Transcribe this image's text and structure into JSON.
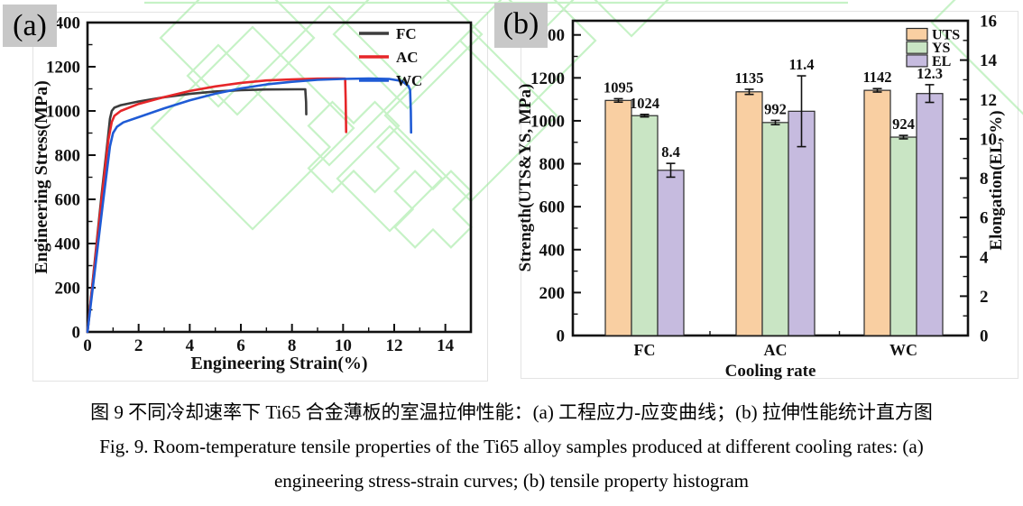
{
  "panels": {
    "a": {
      "label": "(a)"
    },
    "b": {
      "label": "(b)"
    }
  },
  "caption": {
    "zh": "图 9 不同冷却速率下 Ti65 合金薄板的室温拉伸性能：(a) 工程应力-应变曲线；(b) 拉伸性能统计直方图",
    "en1": "Fig. 9. Room-temperature tensile properties of the Ti65 alloy samples produced at different cooling rates: (a)",
    "en2": "engineering stress-strain curves; (b) tensile property histogram"
  },
  "colors": {
    "fc_line": "#3d3d3d",
    "ac_line": "#e62629",
    "wc_line": "#1f5bd5",
    "uts_fill": "#f9cfa2",
    "ys_fill": "#c9e5c4",
    "el_fill": "#c6bbdf",
    "axis": "#111111",
    "watermark_green": "#97e897",
    "corner_gray": "#c8c8c8"
  },
  "chart_data": [
    {
      "type": "line",
      "title": "",
      "xlabel": "Engineering Strain(%)",
      "ylabel": "Engineering Stress(MPa)",
      "xlim": [
        0,
        15
      ],
      "ylim": [
        0,
        1400
      ],
      "x_ticks": [
        0,
        2,
        4,
        6,
        8,
        10,
        12,
        14
      ],
      "y_ticks": [
        0,
        200,
        400,
        600,
        800,
        1000,
        1200,
        1400
      ],
      "grid": false,
      "legend_position": "top-right",
      "series": [
        {
          "name": "FC",
          "color": "#3d3d3d",
          "points": [
            [
              0,
              0
            ],
            [
              0.55,
              620
            ],
            [
              0.8,
              880
            ],
            [
              0.88,
              965
            ],
            [
              0.95,
              1000
            ],
            [
              1.05,
              1015
            ],
            [
              1.3,
              1026
            ],
            [
              2,
              1043
            ],
            [
              3,
              1062
            ],
            [
              4,
              1077
            ],
            [
              5,
              1088
            ],
            [
              6,
              1094
            ],
            [
              7,
              1097
            ],
            [
              8.2,
              1098
            ],
            [
              8.52,
              1098
            ],
            [
              8.55,
              1040
            ],
            [
              8.56,
              985
            ]
          ]
        },
        {
          "name": "AC",
          "color": "#e62629",
          "points": [
            [
              0,
              0
            ],
            [
              0.55,
              600
            ],
            [
              0.82,
              870
            ],
            [
              0.95,
              950
            ],
            [
              1.05,
              978
            ],
            [
              1.3,
              1000
            ],
            [
              2,
              1032
            ],
            [
              3,
              1063
            ],
            [
              4,
              1090
            ],
            [
              5,
              1111
            ],
            [
              6,
              1127
            ],
            [
              7,
              1138
            ],
            [
              8,
              1143
            ],
            [
              9,
              1146
            ],
            [
              9.8,
              1147
            ],
            [
              10.08,
              1146
            ],
            [
              10.1,
              1050
            ],
            [
              10.12,
              905
            ]
          ]
        },
        {
          "name": "WC",
          "color": "#1f5bd5",
          "points": [
            [
              0,
              0
            ],
            [
              0.6,
              580
            ],
            [
              0.88,
              840
            ],
            [
              1.0,
              900
            ],
            [
              1.15,
              928
            ],
            [
              1.4,
              948
            ],
            [
              2,
              972
            ],
            [
              3,
              1012
            ],
            [
              4,
              1048
            ],
            [
              5,
              1078
            ],
            [
              6,
              1102
            ],
            [
              7,
              1120
            ],
            [
              8,
              1132
            ],
            [
              9,
              1141
            ],
            [
              10,
              1145
            ],
            [
              11,
              1147
            ],
            [
              11.8,
              1145
            ],
            [
              12.3,
              1135
            ],
            [
              12.55,
              1113
            ],
            [
              12.62,
              1095
            ],
            [
              12.65,
              1000
            ],
            [
              12.66,
              903
            ]
          ]
        }
      ]
    },
    {
      "type": "bar",
      "categories": [
        "FC",
        "AC",
        "WC"
      ],
      "xlabel": "Cooling rate",
      "ylabel_left": "Strength(UTS&YS, MPa)",
      "ylabel_right": "Elongation(EL, %)",
      "ylim_left": [
        0,
        1466
      ],
      "ylim_right": [
        0,
        16
      ],
      "left_ticks": [
        0,
        200,
        400,
        600,
        800,
        1000,
        1200,
        1400
      ],
      "right_ticks": [
        0,
        2,
        4,
        6,
        8,
        10,
        12,
        14,
        16
      ],
      "grid": false,
      "legend_position": "top-right",
      "series": [
        {
          "name": "UTS",
          "axis": "left",
          "color": "#f9cfa2",
          "values": [
            1095,
            1135,
            1142
          ],
          "errors": [
            8,
            12,
            8
          ],
          "labels": [
            "1095",
            "1135",
            "1142"
          ]
        },
        {
          "name": "YS",
          "axis": "left",
          "color": "#c9e5c4",
          "values": [
            1024,
            992,
            924
          ],
          "errors": [
            6,
            10,
            8
          ],
          "labels": [
            "1024",
            "992",
            "924"
          ]
        },
        {
          "name": "EL",
          "axis": "right",
          "color": "#c6bbdf",
          "values": [
            8.4,
            11.4,
            12.3
          ],
          "errors": [
            0.35,
            1.8,
            0.45
          ],
          "labels": [
            "8.4",
            "11.4",
            "12.3"
          ]
        }
      ]
    }
  ],
  "watermark": {
    "color": "#97e897",
    "opacity": 0.55,
    "diamonds": [
      [
        263,
        42,
        85
      ],
      [
        280,
        142,
        112
      ],
      [
        242,
        84,
        34
      ],
      [
        365,
        95,
        88
      ],
      [
        452,
        38,
        82
      ],
      [
        522,
        128,
        95
      ],
      [
        585,
        45,
        75
      ],
      [
        600,
        -45,
        80
      ],
      [
        432,
        198,
        58
      ],
      [
        700,
        -80,
        120
      ],
      [
        1148,
        25,
        115
      ]
    ],
    "plusses": [
      [
        392,
        163,
        52
      ],
      [
        480,
        232,
        44
      ]
    ],
    "topline": [
      160,
      3,
      940,
      3
    ]
  }
}
